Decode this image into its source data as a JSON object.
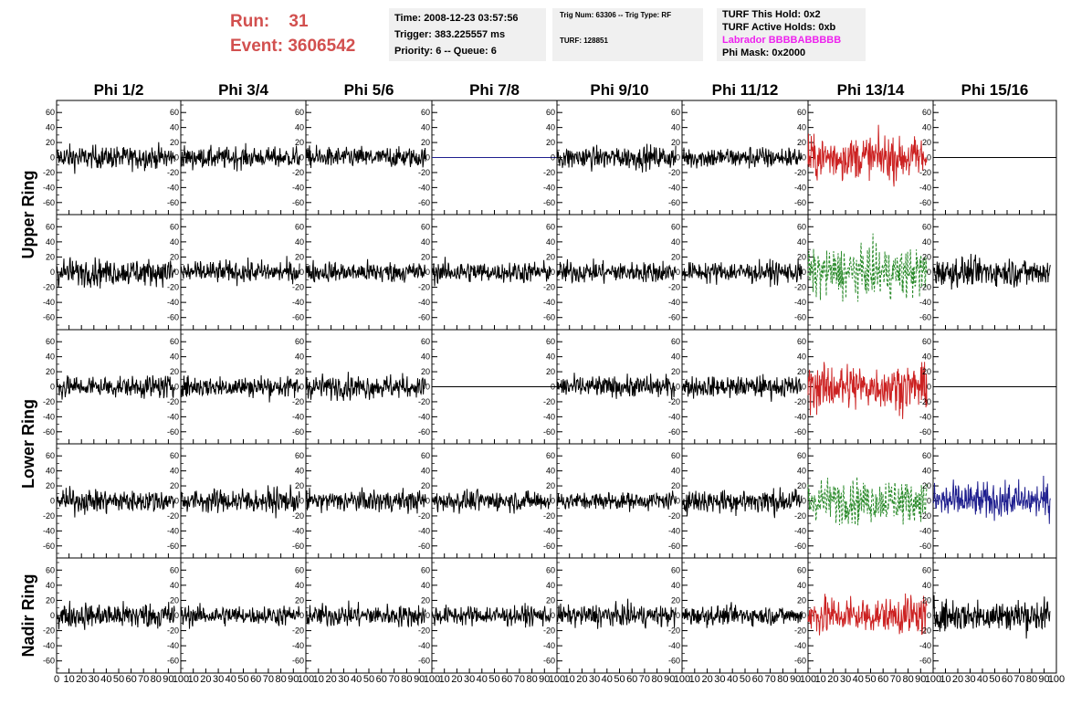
{
  "header": {
    "run_label": "Run:",
    "run_value": "31",
    "event_label": "Event:",
    "event_value": "3606542",
    "time_line": "Time: 2008-12-23 03:57:56",
    "trigger_line": "Trigger: 383.225557 ms",
    "priority_line": "Priority: 6 -- Queue: 6",
    "trig_num_line": "Trig Num: 63306 -- Trig Type: RF",
    "turf_line": "TURF: 128851",
    "turf_hold_line": "TURF This Hold: 0x2",
    "turf_active_line": "TURF Active Holds: 0xb",
    "labrador_line": "Labrador BBBBABBBBB",
    "phi_mask_line": "Phi Mask: 0x2000",
    "colors": {
      "run_text": "#d2504f",
      "labrador_text": "#ee22ee",
      "box_bg": "#f0f0f0"
    }
  },
  "chart_data": {
    "type": "line",
    "columns": [
      "Phi 1/2",
      "Phi 3/4",
      "Phi 5/6",
      "Phi 7/8",
      "Phi 9/10",
      "Phi 11/12",
      "Phi 13/14",
      "Phi 15/16"
    ],
    "row_groups": [
      {
        "label": "Upper Ring",
        "rows": [
          0,
          1
        ]
      },
      {
        "label": "Lower Ring",
        "rows": [
          2,
          3
        ]
      },
      {
        "label": "Nadir Ring",
        "rows": [
          4
        ]
      }
    ],
    "xlim": [
      0,
      100
    ],
    "ylim": [
      -70,
      70
    ],
    "yticks": [
      -60,
      -40,
      -20,
      0,
      20,
      40,
      60
    ],
    "xticks_first_panel": [
      "0",
      "10",
      "20",
      "30",
      "40",
      "50",
      "60",
      "70",
      "80",
      "90",
      "100"
    ],
    "xticks_panel": [
      "10",
      "20",
      "30",
      "40",
      "50",
      "60",
      "70",
      "80",
      "90",
      "100"
    ],
    "panels": [
      [
        {
          "style": "noise",
          "color": "#000000",
          "amp": 13
        },
        {
          "style": "noise",
          "color": "#000000",
          "amp": 12
        },
        {
          "style": "noise",
          "color": "#000000",
          "amp": 12
        },
        {
          "style": "flat",
          "color": "#1f1f8f"
        },
        {
          "style": "noise",
          "color": "#000000",
          "amp": 13
        },
        {
          "style": "noise",
          "color": "#000000",
          "amp": 12
        },
        {
          "style": "noise",
          "color": "#cc2222",
          "amp": 26
        },
        {
          "style": "flat",
          "color": "#000000"
        }
      ],
      [
        {
          "style": "noise",
          "color": "#000000",
          "amp": 15
        },
        {
          "style": "noise",
          "color": "#000000",
          "amp": 12
        },
        {
          "style": "noise",
          "color": "#000000",
          "amp": 12
        },
        {
          "style": "noise",
          "color": "#000000",
          "amp": 12
        },
        {
          "style": "noise",
          "color": "#000000",
          "amp": 12
        },
        {
          "style": "noise",
          "color": "#000000",
          "amp": 12
        },
        {
          "style": "dashed",
          "color": "#2a8a2a",
          "amp": 28
        },
        {
          "style": "noise",
          "color": "#000000",
          "amp": 16
        }
      ],
      [
        {
          "style": "noise",
          "color": "#000000",
          "amp": 13
        },
        {
          "style": "noise",
          "color": "#000000",
          "amp": 12
        },
        {
          "style": "noise",
          "color": "#000000",
          "amp": 13
        },
        {
          "style": "flat",
          "color": "#000000"
        },
        {
          "style": "noise",
          "color": "#000000",
          "amp": 12
        },
        {
          "style": "noise",
          "color": "#000000",
          "amp": 12
        },
        {
          "style": "noise",
          "color": "#cc2222",
          "amp": 26
        },
        {
          "style": "flat",
          "color": "#000000"
        }
      ],
      [
        {
          "style": "noise",
          "color": "#000000",
          "amp": 13
        },
        {
          "style": "noise",
          "color": "#000000",
          "amp": 14
        },
        {
          "style": "noise",
          "color": "#000000",
          "amp": 12
        },
        {
          "style": "noise",
          "color": "#000000",
          "amp": 12
        },
        {
          "style": "noise",
          "color": "#000000",
          "amp": 10
        },
        {
          "style": "noise",
          "color": "#000000",
          "amp": 14
        },
        {
          "style": "dashed",
          "color": "#2a8a2a",
          "amp": 24
        },
        {
          "style": "noise",
          "color": "#1f1f8f",
          "amp": 20
        }
      ],
      [
        {
          "style": "noise",
          "color": "#000000",
          "amp": 15
        },
        {
          "style": "noise",
          "color": "#000000",
          "amp": 11
        },
        {
          "style": "noise",
          "color": "#000000",
          "amp": 12
        },
        {
          "style": "noise",
          "color": "#000000",
          "amp": 11
        },
        {
          "style": "noise",
          "color": "#000000",
          "amp": 12
        },
        {
          "style": "noise",
          "color": "#000000",
          "amp": 11
        },
        {
          "style": "noise",
          "color": "#cc2222",
          "amp": 22
        },
        {
          "style": "noise",
          "color": "#000000",
          "amp": 18
        }
      ]
    ]
  }
}
